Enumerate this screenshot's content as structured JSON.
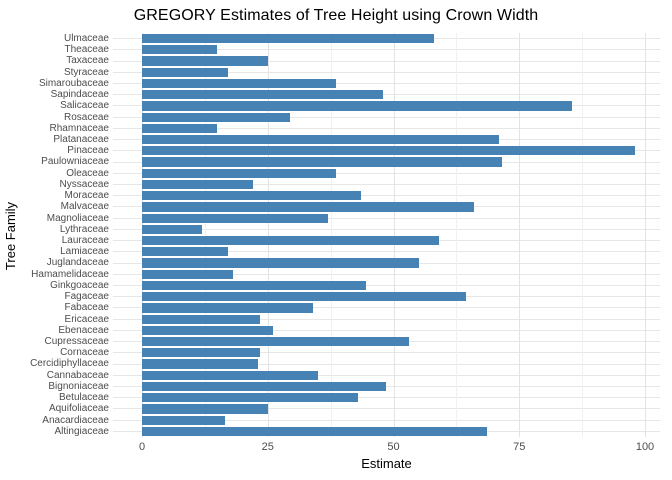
{
  "chart_data": {
    "type": "bar",
    "orientation": "horizontal",
    "title": "GREGORY Estimates of Tree Height using Crown Width",
    "xlabel": "Estimate",
    "ylabel": "Tree Family",
    "categories": [
      "Ulmaceae",
      "Theaceae",
      "Taxaceae",
      "Styraceae",
      "Simaroubaceae",
      "Sapindaceae",
      "Salicaceae",
      "Rosaceae",
      "Rhamnaceae",
      "Platanaceae",
      "Pinaceae",
      "Paulowniaceae",
      "Oleaceae",
      "Nyssaceae",
      "Moraceae",
      "Malvaceae",
      "Magnoliaceae",
      "Lythraceae",
      "Lauraceae",
      "Lamiaceae",
      "Juglandaceae",
      "Hamamelidaceae",
      "Ginkgoaceae",
      "Fagaceae",
      "Fabaceae",
      "Ericaceae",
      "Ebenaceae",
      "Cupressaceae",
      "Cornaceae",
      "Cercidiphyllaceae",
      "Cannabaceae",
      "Bignoniaceae",
      "Betulaceae",
      "Aquifoliaceae",
      "Anacardiaceae",
      "Altingiaceae"
    ],
    "values": [
      58,
      15,
      25,
      17,
      38.5,
      48,
      85.5,
      29.5,
      15,
      71,
      98,
      71.5,
      38.5,
      22,
      43.5,
      66,
      37,
      12,
      59,
      17,
      55,
      18,
      44.5,
      64.5,
      34,
      23.5,
      26,
      53,
      23.5,
      23,
      35,
      48.5,
      43,
      25,
      16.5,
      68.5
    ],
    "xlim": [
      0,
      100
    ],
    "x_major_ticks": [
      0,
      25,
      50,
      75,
      100
    ],
    "x_minor_gridlines": [
      12.5,
      37.5,
      62.5,
      87.5
    ],
    "bar_color": "#4682B4",
    "grid": "on",
    "legend": "none",
    "background": "#FFFFFF",
    "tick_text_color": "#4D4D4D",
    "major_grid_color": "#E3E3E3",
    "minor_grid_color": "#F1F1F1",
    "row_grid_color": "#E7E7E7"
  }
}
